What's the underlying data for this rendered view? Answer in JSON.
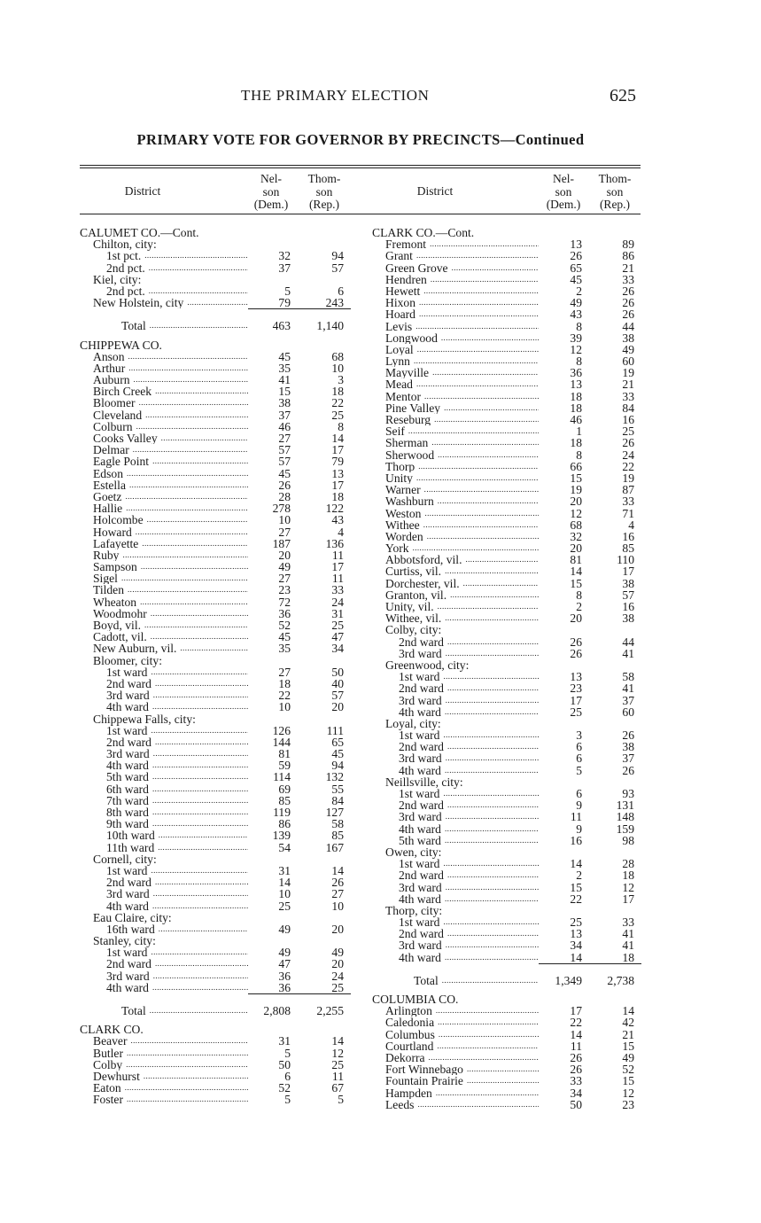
{
  "running_head": {
    "title": "THE PRIMARY ELECTION",
    "page_number": "625"
  },
  "subtitle": "PRIMARY VOTE FOR GOVERNOR BY PRECINCTS—Continued",
  "headers": {
    "district": "District",
    "nelson": [
      "Nel-",
      "son",
      "(Dem.)"
    ],
    "thomson": [
      "Thom-",
      "son",
      "(Rep.)"
    ]
  },
  "left": [
    {
      "t": "h",
      "name": "CALUMET CO.—Cont."
    },
    {
      "t": "s",
      "name": "Chilton, city:"
    },
    {
      "t": "r",
      "lvl": 2,
      "name": "1st pct.",
      "dem": "32",
      "rep": "94"
    },
    {
      "t": "r",
      "lvl": 2,
      "name": "2nd pct.",
      "dem": "37",
      "rep": "57"
    },
    {
      "t": "s",
      "name": "Kiel, city:"
    },
    {
      "t": "r",
      "lvl": 2,
      "name": "2nd pct.",
      "dem": "5",
      "rep": "6"
    },
    {
      "t": "r",
      "lvl": 1,
      "name": "New Holstein, city",
      "dem": "79",
      "rep": "243"
    },
    {
      "t": "total",
      "name": "Total",
      "dem": "463",
      "rep": "1,140"
    },
    {
      "t": "h",
      "name": "CHIPPEWA CO."
    },
    {
      "t": "r",
      "lvl": 1,
      "name": "Anson",
      "dem": "45",
      "rep": "68"
    },
    {
      "t": "r",
      "lvl": 1,
      "name": "Arthur",
      "dem": "35",
      "rep": "10"
    },
    {
      "t": "r",
      "lvl": 1,
      "name": "Auburn",
      "dem": "41",
      "rep": "3"
    },
    {
      "t": "r",
      "lvl": 1,
      "name": "Birch Creek",
      "dem": "15",
      "rep": "18"
    },
    {
      "t": "r",
      "lvl": 1,
      "name": "Bloomer",
      "dem": "38",
      "rep": "22"
    },
    {
      "t": "r",
      "lvl": 1,
      "name": "Cleveland",
      "dem": "37",
      "rep": "25"
    },
    {
      "t": "r",
      "lvl": 1,
      "name": "Colburn",
      "dem": "46",
      "rep": "8"
    },
    {
      "t": "r",
      "lvl": 1,
      "name": "Cooks Valley",
      "dem": "27",
      "rep": "14"
    },
    {
      "t": "r",
      "lvl": 1,
      "name": "Delmar",
      "dem": "57",
      "rep": "17"
    },
    {
      "t": "r",
      "lvl": 1,
      "name": "Eagle Point",
      "dem": "57",
      "rep": "79"
    },
    {
      "t": "r",
      "lvl": 1,
      "name": "Edson",
      "dem": "45",
      "rep": "13"
    },
    {
      "t": "r",
      "lvl": 1,
      "name": "Estella",
      "dem": "26",
      "rep": "17"
    },
    {
      "t": "r",
      "lvl": 1,
      "name": "Goetz",
      "dem": "28",
      "rep": "18"
    },
    {
      "t": "r",
      "lvl": 1,
      "name": "Hallie",
      "dem": "278",
      "rep": "122"
    },
    {
      "t": "r",
      "lvl": 1,
      "name": "Holcombe",
      "dem": "10",
      "rep": "43"
    },
    {
      "t": "r",
      "lvl": 1,
      "name": "Howard",
      "dem": "27",
      "rep": "4"
    },
    {
      "t": "r",
      "lvl": 1,
      "name": "Lafayette",
      "dem": "187",
      "rep": "136"
    },
    {
      "t": "r",
      "lvl": 1,
      "name": "Ruby",
      "dem": "20",
      "rep": "11"
    },
    {
      "t": "r",
      "lvl": 1,
      "name": "Sampson",
      "dem": "49",
      "rep": "17"
    },
    {
      "t": "r",
      "lvl": 1,
      "name": "Sigel",
      "dem": "27",
      "rep": "11"
    },
    {
      "t": "r",
      "lvl": 1,
      "name": "Tilden",
      "dem": "23",
      "rep": "33"
    },
    {
      "t": "r",
      "lvl": 1,
      "name": "Wheaton",
      "dem": "72",
      "rep": "24"
    },
    {
      "t": "r",
      "lvl": 1,
      "name": "Woodmohr",
      "dem": "36",
      "rep": "31"
    },
    {
      "t": "r",
      "lvl": 1,
      "name": "Boyd, vil.",
      "dem": "52",
      "rep": "25"
    },
    {
      "t": "r",
      "lvl": 1,
      "name": "Cadott, vil.",
      "dem": "45",
      "rep": "47"
    },
    {
      "t": "r",
      "lvl": 1,
      "name": "New Auburn, vil.",
      "dem": "35",
      "rep": "34"
    },
    {
      "t": "s",
      "name": "Bloomer, city:"
    },
    {
      "t": "r",
      "lvl": 2,
      "name": "1st ward",
      "dem": "27",
      "rep": "50"
    },
    {
      "t": "r",
      "lvl": 2,
      "name": "2nd ward",
      "dem": "18",
      "rep": "40"
    },
    {
      "t": "r",
      "lvl": 2,
      "name": "3rd ward",
      "dem": "22",
      "rep": "57"
    },
    {
      "t": "r",
      "lvl": 2,
      "name": "4th ward",
      "dem": "10",
      "rep": "20"
    },
    {
      "t": "s",
      "name": "Chippewa Falls, city:"
    },
    {
      "t": "r",
      "lvl": 2,
      "name": "1st ward",
      "dem": "126",
      "rep": "111"
    },
    {
      "t": "r",
      "lvl": 2,
      "name": "2nd ward",
      "dem": "144",
      "rep": "65"
    },
    {
      "t": "r",
      "lvl": 2,
      "name": "3rd ward",
      "dem": "81",
      "rep": "45"
    },
    {
      "t": "r",
      "lvl": 2,
      "name": "4th ward",
      "dem": "59",
      "rep": "94"
    },
    {
      "t": "r",
      "lvl": 2,
      "name": "5th ward",
      "dem": "114",
      "rep": "132"
    },
    {
      "t": "r",
      "lvl": 2,
      "name": "6th ward",
      "dem": "69",
      "rep": "55"
    },
    {
      "t": "r",
      "lvl": 2,
      "name": "7th ward",
      "dem": "85",
      "rep": "84"
    },
    {
      "t": "r",
      "lvl": 2,
      "name": "8th ward",
      "dem": "119",
      "rep": "127"
    },
    {
      "t": "r",
      "lvl": 2,
      "name": "9th ward",
      "dem": "86",
      "rep": "58"
    },
    {
      "t": "r",
      "lvl": 2,
      "name": "10th ward",
      "dem": "139",
      "rep": "85"
    },
    {
      "t": "r",
      "lvl": 2,
      "name": "11th ward",
      "dem": "54",
      "rep": "167"
    },
    {
      "t": "s",
      "name": "Cornell, city:"
    },
    {
      "t": "r",
      "lvl": 2,
      "name": "1st ward",
      "dem": "31",
      "rep": "14"
    },
    {
      "t": "r",
      "lvl": 2,
      "name": "2nd ward",
      "dem": "14",
      "rep": "26"
    },
    {
      "t": "r",
      "lvl": 2,
      "name": "3rd ward",
      "dem": "10",
      "rep": "27"
    },
    {
      "t": "r",
      "lvl": 2,
      "name": "4th ward",
      "dem": "25",
      "rep": "10"
    },
    {
      "t": "s",
      "name": "Eau Claire, city:"
    },
    {
      "t": "r",
      "lvl": 2,
      "name": "16th ward",
      "dem": "49",
      "rep": "20"
    },
    {
      "t": "s",
      "name": "Stanley, city:"
    },
    {
      "t": "r",
      "lvl": 2,
      "name": "1st ward",
      "dem": "49",
      "rep": "49"
    },
    {
      "t": "r",
      "lvl": 2,
      "name": "2nd ward",
      "dem": "47",
      "rep": "20"
    },
    {
      "t": "r",
      "lvl": 2,
      "name": "3rd ward",
      "dem": "36",
      "rep": "24"
    },
    {
      "t": "r",
      "lvl": 2,
      "name": "4th ward",
      "dem": "36",
      "rep": "25"
    },
    {
      "t": "total",
      "name": "Total",
      "dem": "2,808",
      "rep": "2,255"
    },
    {
      "t": "h",
      "name": "CLARK CO."
    },
    {
      "t": "r",
      "lvl": 1,
      "name": "Beaver",
      "dem": "31",
      "rep": "14"
    },
    {
      "t": "r",
      "lvl": 1,
      "name": "Butler",
      "dem": "5",
      "rep": "12"
    },
    {
      "t": "r",
      "lvl": 1,
      "name": "Colby",
      "dem": "50",
      "rep": "25"
    },
    {
      "t": "r",
      "lvl": 1,
      "name": "Dewhurst",
      "dem": "6",
      "rep": "11"
    },
    {
      "t": "r",
      "lvl": 1,
      "name": "Eaton",
      "dem": "52",
      "rep": "67"
    },
    {
      "t": "r",
      "lvl": 1,
      "name": "Foster",
      "dem": "5",
      "rep": "5"
    }
  ],
  "right": [
    {
      "t": "h",
      "name": "CLARK CO.—Cont."
    },
    {
      "t": "r",
      "lvl": 1,
      "name": "Fremont",
      "dem": "13",
      "rep": "89"
    },
    {
      "t": "r",
      "lvl": 1,
      "name": "Grant",
      "dem": "26",
      "rep": "86"
    },
    {
      "t": "r",
      "lvl": 1,
      "name": "Green Grove",
      "dem": "65",
      "rep": "21"
    },
    {
      "t": "r",
      "lvl": 1,
      "name": "Hendren",
      "dem": "45",
      "rep": "33"
    },
    {
      "t": "r",
      "lvl": 1,
      "name": "Hewett",
      "dem": "2",
      "rep": "26"
    },
    {
      "t": "r",
      "lvl": 1,
      "name": "Hixon",
      "dem": "49",
      "rep": "26"
    },
    {
      "t": "r",
      "lvl": 1,
      "name": "Hoard",
      "dem": "43",
      "rep": "26"
    },
    {
      "t": "r",
      "lvl": 1,
      "name": "Levis",
      "dem": "8",
      "rep": "44"
    },
    {
      "t": "r",
      "lvl": 1,
      "name": "Longwood",
      "dem": "39",
      "rep": "38"
    },
    {
      "t": "r",
      "lvl": 1,
      "name": "Loyal",
      "dem": "12",
      "rep": "49"
    },
    {
      "t": "r",
      "lvl": 1,
      "name": "Lynn",
      "dem": "8",
      "rep": "60"
    },
    {
      "t": "r",
      "lvl": 1,
      "name": "Mayville",
      "dem": "36",
      "rep": "19"
    },
    {
      "t": "r",
      "lvl": 1,
      "name": "Mead",
      "dem": "13",
      "rep": "21"
    },
    {
      "t": "r",
      "lvl": 1,
      "name": "Mentor",
      "dem": "18",
      "rep": "33"
    },
    {
      "t": "r",
      "lvl": 1,
      "name": "Pine Valley",
      "dem": "18",
      "rep": "84"
    },
    {
      "t": "r",
      "lvl": 1,
      "name": "Reseburg",
      "dem": "46",
      "rep": "16"
    },
    {
      "t": "r",
      "lvl": 1,
      "name": "Seif",
      "dem": "1",
      "rep": "25"
    },
    {
      "t": "r",
      "lvl": 1,
      "name": "Sherman",
      "dem": "18",
      "rep": "26"
    },
    {
      "t": "r",
      "lvl": 1,
      "name": "Sherwood",
      "dem": "8",
      "rep": "24"
    },
    {
      "t": "r",
      "lvl": 1,
      "name": "Thorp",
      "dem": "66",
      "rep": "22"
    },
    {
      "t": "r",
      "lvl": 1,
      "name": "Unity",
      "dem": "15",
      "rep": "19"
    },
    {
      "t": "r",
      "lvl": 1,
      "name": "Warner",
      "dem": "19",
      "rep": "87"
    },
    {
      "t": "r",
      "lvl": 1,
      "name": "Washburn",
      "dem": "20",
      "rep": "33"
    },
    {
      "t": "r",
      "lvl": 1,
      "name": "Weston",
      "dem": "12",
      "rep": "71"
    },
    {
      "t": "r",
      "lvl": 1,
      "name": "Withee",
      "dem": "68",
      "rep": "4"
    },
    {
      "t": "r",
      "lvl": 1,
      "name": "Worden",
      "dem": "32",
      "rep": "16"
    },
    {
      "t": "r",
      "lvl": 1,
      "name": "York",
      "dem": "20",
      "rep": "85"
    },
    {
      "t": "r",
      "lvl": 1,
      "name": "Abbotsford, vil.",
      "dem": "81",
      "rep": "110"
    },
    {
      "t": "r",
      "lvl": 1,
      "name": "Curtiss, vil.",
      "dem": "14",
      "rep": "17"
    },
    {
      "t": "r",
      "lvl": 1,
      "name": "Dorchester, vil.",
      "dem": "15",
      "rep": "38"
    },
    {
      "t": "r",
      "lvl": 1,
      "name": "Granton, vil.",
      "dem": "8",
      "rep": "57"
    },
    {
      "t": "r",
      "lvl": 1,
      "name": "Unity, vil.",
      "dem": "2",
      "rep": "16"
    },
    {
      "t": "r",
      "lvl": 1,
      "name": "Withee, vil.",
      "dem": "20",
      "rep": "38"
    },
    {
      "t": "s",
      "name": "Colby, city:"
    },
    {
      "t": "r",
      "lvl": 2,
      "name": "2nd ward",
      "dem": "26",
      "rep": "44"
    },
    {
      "t": "r",
      "lvl": 2,
      "name": "3rd ward",
      "dem": "26",
      "rep": "41"
    },
    {
      "t": "s",
      "name": "Greenwood, city:"
    },
    {
      "t": "r",
      "lvl": 2,
      "name": "1st ward",
      "dem": "13",
      "rep": "58"
    },
    {
      "t": "r",
      "lvl": 2,
      "name": "2nd ward",
      "dem": "23",
      "rep": "41"
    },
    {
      "t": "r",
      "lvl": 2,
      "name": "3rd ward",
      "dem": "17",
      "rep": "37"
    },
    {
      "t": "r",
      "lvl": 2,
      "name": "4th ward",
      "dem": "25",
      "rep": "60"
    },
    {
      "t": "s",
      "name": "Loyal, city:"
    },
    {
      "t": "r",
      "lvl": 2,
      "name": "1st ward",
      "dem": "3",
      "rep": "26"
    },
    {
      "t": "r",
      "lvl": 2,
      "name": "2nd ward",
      "dem": "6",
      "rep": "38"
    },
    {
      "t": "r",
      "lvl": 2,
      "name": "3rd ward",
      "dem": "6",
      "rep": "37"
    },
    {
      "t": "r",
      "lvl": 2,
      "name": "4th ward",
      "dem": "5",
      "rep": "26"
    },
    {
      "t": "s",
      "name": "Neillsville, city:"
    },
    {
      "t": "r",
      "lvl": 2,
      "name": "1st ward",
      "dem": "6",
      "rep": "93"
    },
    {
      "t": "r",
      "lvl": 2,
      "name": "2nd ward",
      "dem": "9",
      "rep": "131"
    },
    {
      "t": "r",
      "lvl": 2,
      "name": "3rd ward",
      "dem": "11",
      "rep": "148"
    },
    {
      "t": "r",
      "lvl": 2,
      "name": "4th ward",
      "dem": "9",
      "rep": "159"
    },
    {
      "t": "r",
      "lvl": 2,
      "name": "5th ward",
      "dem": "16",
      "rep": "98"
    },
    {
      "t": "s",
      "name": "Owen, city:"
    },
    {
      "t": "r",
      "lvl": 2,
      "name": "1st ward",
      "dem": "14",
      "rep": "28"
    },
    {
      "t": "r",
      "lvl": 2,
      "name": "2nd ward",
      "dem": "2",
      "rep": "18"
    },
    {
      "t": "r",
      "lvl": 2,
      "name": "3rd ward",
      "dem": "15",
      "rep": "12"
    },
    {
      "t": "r",
      "lvl": 2,
      "name": "4th ward",
      "dem": "22",
      "rep": "17"
    },
    {
      "t": "s",
      "name": "Thorp, city:"
    },
    {
      "t": "r",
      "lvl": 2,
      "name": "1st ward",
      "dem": "25",
      "rep": "33"
    },
    {
      "t": "r",
      "lvl": 2,
      "name": "2nd ward",
      "dem": "13",
      "rep": "41"
    },
    {
      "t": "r",
      "lvl": 2,
      "name": "3rd ward",
      "dem": "34",
      "rep": "41"
    },
    {
      "t": "r",
      "lvl": 2,
      "name": "4th ward",
      "dem": "14",
      "rep": "18"
    },
    {
      "t": "total",
      "name": "Total",
      "dem": "1,349",
      "rep": "2,738"
    },
    {
      "t": "h",
      "name": "COLUMBIA CO."
    },
    {
      "t": "r",
      "lvl": 1,
      "name": "Arlington",
      "dem": "17",
      "rep": "14"
    },
    {
      "t": "r",
      "lvl": 1,
      "name": "Caledonia",
      "dem": "22",
      "rep": "42"
    },
    {
      "t": "r",
      "lvl": 1,
      "name": "Columbus",
      "dem": "14",
      "rep": "21"
    },
    {
      "t": "r",
      "lvl": 1,
      "name": "Courtland",
      "dem": "11",
      "rep": "15"
    },
    {
      "t": "r",
      "lvl": 1,
      "name": "Dekorra",
      "dem": "26",
      "rep": "49"
    },
    {
      "t": "r",
      "lvl": 1,
      "name": "Fort Winnebago",
      "dem": "26",
      "rep": "52"
    },
    {
      "t": "r",
      "lvl": 1,
      "name": "Fountain Prairie",
      "dem": "33",
      "rep": "15"
    },
    {
      "t": "r",
      "lvl": 1,
      "name": "Hampden",
      "dem": "34",
      "rep": "12"
    },
    {
      "t": "r",
      "lvl": 1,
      "name": "Leeds",
      "dem": "50",
      "rep": "23"
    }
  ]
}
